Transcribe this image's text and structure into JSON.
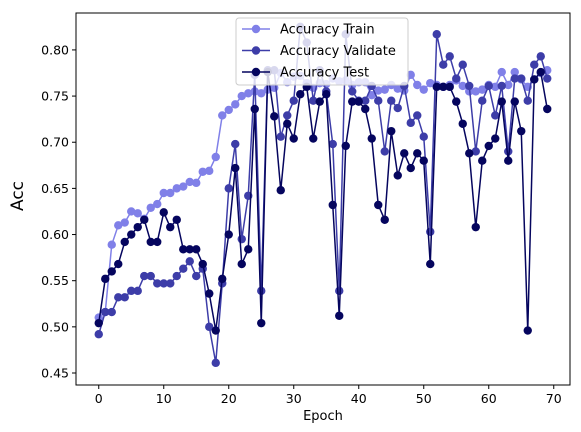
{
  "chart_data": {
    "type": "line",
    "xlabel": "Epoch",
    "ylabel": "Acc",
    "ylabel_color": "#0000ff",
    "xlim": [
      -3.5,
      72.5
    ],
    "ylim": [
      0.437,
      0.84
    ],
    "xticks": [
      0,
      10,
      20,
      30,
      40,
      50,
      60,
      70
    ],
    "yticks": [
      0.45,
      0.5,
      0.55,
      0.6,
      0.65,
      0.7,
      0.75,
      0.8
    ],
    "ytick_labels": [
      "0.45",
      "0.50",
      "0.55",
      "0.60",
      "0.65",
      "0.70",
      "0.75",
      "0.80"
    ],
    "legend_position": "top-center",
    "grid": false,
    "x": [
      0,
      1,
      2,
      3,
      4,
      5,
      6,
      7,
      8,
      9,
      10,
      11,
      12,
      13,
      14,
      15,
      16,
      17,
      18,
      19,
      20,
      21,
      22,
      23,
      24,
      25,
      26,
      27,
      28,
      29,
      30,
      31,
      32,
      33,
      34,
      35,
      36,
      37,
      38,
      39,
      40,
      41,
      42,
      43,
      44,
      45,
      46,
      47,
      48,
      49,
      50,
      51,
      52,
      53,
      54,
      55,
      56,
      57,
      58,
      59,
      60,
      61,
      62,
      63,
      64,
      65,
      66,
      67,
      68,
      69
    ],
    "series": [
      {
        "name": "Accuracy Train",
        "color": "#8080e8",
        "values": [
          0.51,
          0.516,
          0.589,
          0.61,
          0.613,
          0.625,
          0.623,
          0.617,
          0.629,
          0.633,
          0.645,
          0.645,
          0.65,
          0.652,
          0.657,
          0.656,
          0.668,
          0.669,
          0.684,
          0.729,
          0.735,
          0.741,
          0.75,
          0.753,
          0.755,
          0.753,
          0.757,
          0.759,
          0.775,
          0.765,
          0.771,
          0.772,
          0.764,
          0.759,
          0.764,
          0.763,
          0.769,
          0.766,
          0.767,
          0.762,
          0.765,
          0.765,
          0.751,
          0.756,
          0.757,
          0.762,
          0.758,
          0.756,
          0.773,
          0.762,
          0.757,
          0.764,
          0.762,
          0.76,
          0.762,
          0.767,
          0.761,
          0.755,
          0.755,
          0.757,
          0.762,
          0.76,
          0.776,
          0.762,
          0.776,
          0.768,
          0.76,
          0.768,
          0.775,
          0.778
        ]
      },
      {
        "name": "Accuracy Validate",
        "color": "#3d3da8",
        "values": [
          0.492,
          0.516,
          0.516,
          0.532,
          0.532,
          0.539,
          0.539,
          0.555,
          0.555,
          0.547,
          0.547,
          0.547,
          0.555,
          0.563,
          0.571,
          0.555,
          0.563,
          0.5,
          0.461,
          0.547,
          0.65,
          0.698,
          0.595,
          0.642,
          0.773,
          0.539,
          0.778,
          0.778,
          0.706,
          0.729,
          0.745,
          0.825,
          0.808,
          0.745,
          0.778,
          0.755,
          0.698,
          0.539,
          0.817,
          0.755,
          0.745,
          0.745,
          0.761,
          0.745,
          0.69,
          0.745,
          0.737,
          0.761,
          0.721,
          0.729,
          0.706,
          0.603,
          0.817,
          0.784,
          0.793,
          0.769,
          0.784,
          0.761,
          0.69,
          0.745,
          0.761,
          0.729,
          0.761,
          0.69,
          0.769,
          0.769,
          0.745,
          0.784,
          0.793,
          0.769
        ]
      },
      {
        "name": "Accuracy Test",
        "color": "#05055e",
        "values": [
          0.504,
          0.552,
          0.56,
          0.568,
          0.592,
          0.6,
          0.608,
          0.616,
          0.592,
          0.592,
          0.624,
          0.608,
          0.616,
          0.584,
          0.584,
          0.584,
          0.568,
          0.536,
          0.496,
          0.552,
          0.6,
          0.672,
          0.568,
          0.584,
          0.736,
          0.504,
          0.776,
          0.728,
          0.648,
          0.72,
          0.704,
          0.752,
          0.76,
          0.704,
          0.744,
          0.752,
          0.632,
          0.512,
          0.696,
          0.744,
          0.744,
          0.736,
          0.704,
          0.632,
          0.616,
          0.712,
          0.664,
          0.688,
          0.672,
          0.688,
          0.68,
          0.568,
          0.76,
          0.76,
          0.76,
          0.744,
          0.72,
          0.688,
          0.608,
          0.68,
          0.696,
          0.704,
          0.744,
          0.68,
          0.744,
          0.712,
          0.496,
          0.768,
          0.776,
          0.736
        ]
      }
    ]
  }
}
